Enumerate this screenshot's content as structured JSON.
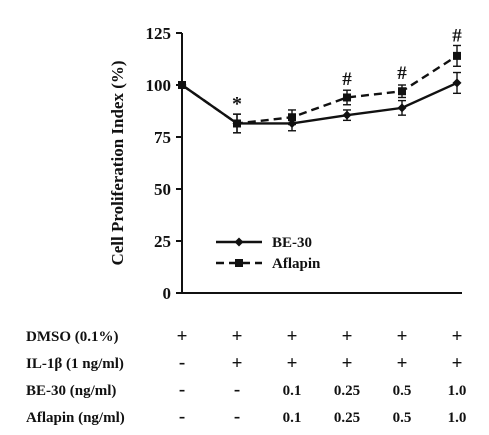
{
  "chart_data": {
    "type": "line",
    "ylabel": "Cell Proliferation Index (%)",
    "ylim": [
      0,
      125
    ],
    "yticks": [
      0,
      25,
      50,
      75,
      100,
      125
    ],
    "x": [
      1,
      2,
      3,
      4,
      5,
      6
    ],
    "series": [
      {
        "name": "BE-30",
        "style": "solid",
        "marker": "diamond",
        "values": [
          100,
          81.5,
          81.5,
          85.5,
          89,
          101
        ],
        "errors": [
          0,
          4.5,
          3.5,
          2.5,
          3.5,
          5
        ]
      },
      {
        "name": "Aflapin",
        "style": "dashed",
        "marker": "square",
        "values": [
          100,
          81.5,
          84.5,
          94,
          97,
          114
        ],
        "errors": [
          0,
          4.5,
          3.5,
          3.5,
          3,
          5
        ]
      }
    ],
    "annotations": [
      {
        "x": 2,
        "y": 88,
        "text": "*"
      },
      {
        "x": 4,
        "y": 100,
        "text": "#"
      },
      {
        "x": 5,
        "y": 103,
        "text": "#"
      },
      {
        "x": 6,
        "y": 121,
        "text": "#"
      }
    ],
    "legend_position": "lower-left",
    "treatment_table": {
      "rows": [
        {
          "label": "DMSO (0.1%)",
          "values": [
            "+",
            "+",
            "+",
            "+",
            "+",
            "+"
          ]
        },
        {
          "label": "IL-1β (1 ng/ml)",
          "values": [
            "-",
            "+",
            "+",
            "+",
            "+",
            "+"
          ]
        },
        {
          "label": "BE-30 (ng/ml)",
          "values": [
            "-",
            "-",
            "0.1",
            "0.25",
            "0.5",
            "1.0"
          ]
        },
        {
          "label": "Aflapin (ng/ml)",
          "values": [
            "-",
            "-",
            "0.1",
            "0.25",
            "0.5",
            "1.0"
          ]
        }
      ]
    }
  }
}
